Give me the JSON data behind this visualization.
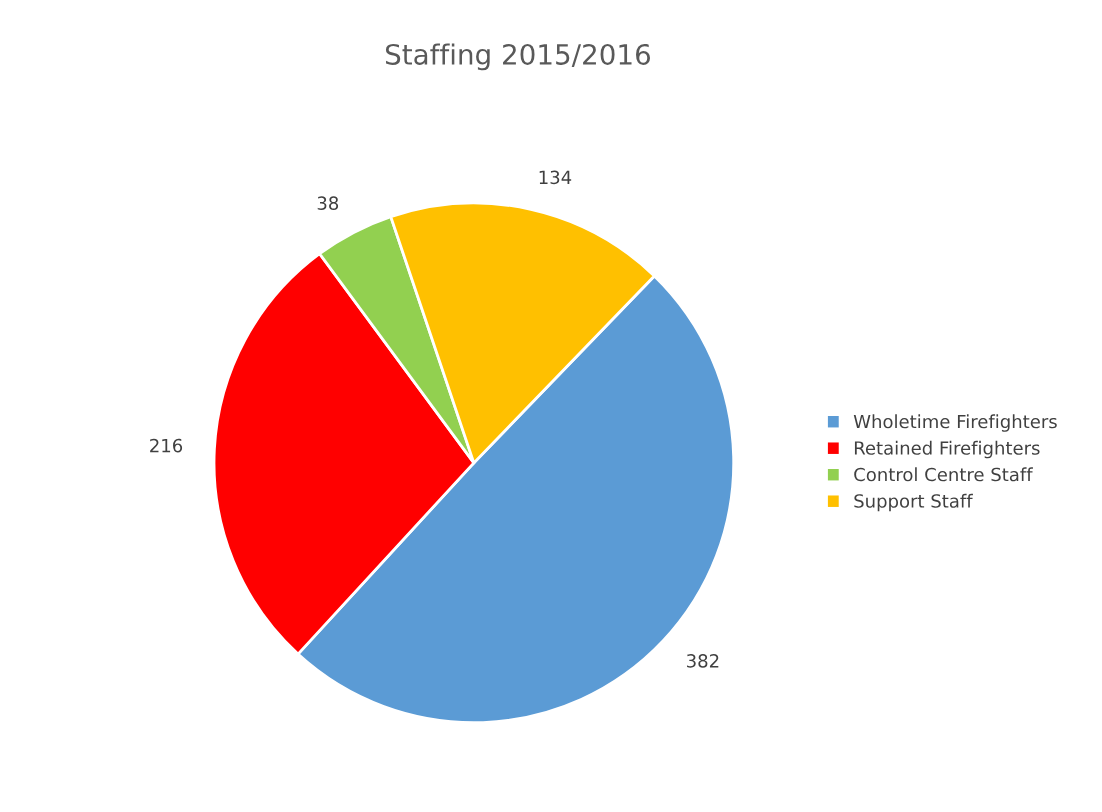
{
  "chart_data": {
    "type": "pie",
    "title": "Staffing 2015/2016",
    "categories": [
      "Wholetime Firefighters",
      "Retained Firefighters",
      "Control Centre Staff",
      "Support Staff"
    ],
    "values": [
      382,
      216,
      38,
      134
    ],
    "colors": [
      "#5b9bd5",
      "#ff0000",
      "#92d050",
      "#ffc000"
    ],
    "data_labels": true,
    "legend": "right"
  }
}
